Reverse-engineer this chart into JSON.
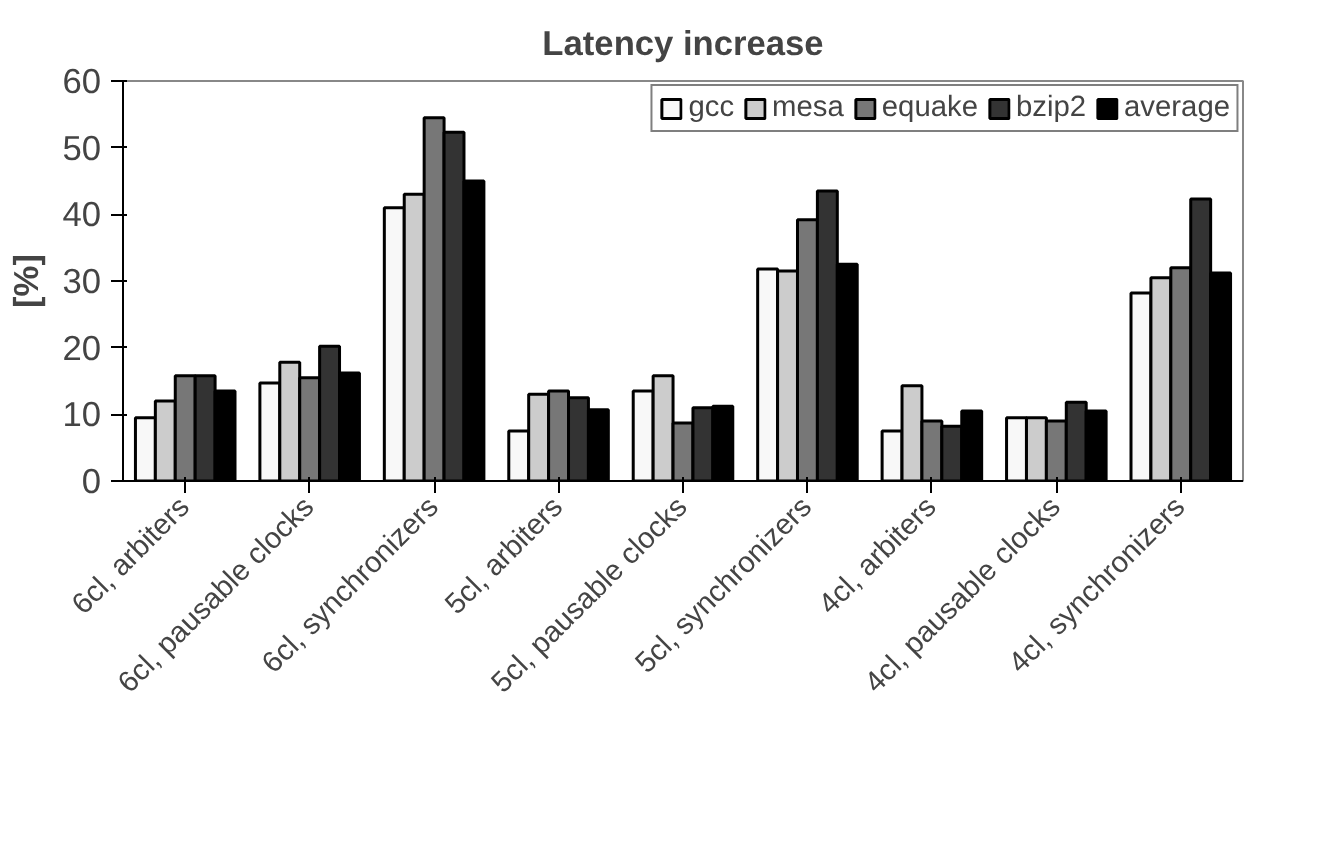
{
  "chart_data": {
    "type": "bar",
    "title": "Latency increase",
    "ylabel": "[%]",
    "categories": [
      "6cl, arbiters",
      "6cl, pausable clocks",
      "6cl, synchronizers",
      "5cl, arbiters",
      "5cl, pausable clocks",
      "5cl, synchronizers",
      "4cl, arbiters",
      "4cl, pausable clocks",
      "4cl, synchronizers"
    ],
    "series": [
      {
        "name": "gcc",
        "color": "#f8f8f8",
        "values": [
          9.5,
          14.7,
          41,
          7.5,
          13.5,
          31.8,
          7.5,
          9.5,
          28.2
        ]
      },
      {
        "name": "mesa",
        "color": "#cccccc",
        "values": [
          12,
          17.8,
          43,
          13,
          15.8,
          31.5,
          14.3,
          9.5,
          30.5
        ]
      },
      {
        "name": "equake",
        "color": "#777777",
        "values": [
          15.8,
          15.5,
          54.5,
          13.5,
          8.7,
          39.2,
          9,
          9,
          32
        ]
      },
      {
        "name": "bzip2",
        "color": "#333333",
        "values": [
          15.8,
          20.2,
          52.3,
          12.5,
          11,
          43.5,
          8.2,
          11.8,
          42.3
        ]
      },
      {
        "name": "average",
        "color": "#000000",
        "values": [
          13.5,
          16.2,
          45,
          10.7,
          11.2,
          32.5,
          10.5,
          10.5,
          31.2
        ]
      }
    ],
    "ylim": [
      0,
      60
    ],
    "yticks": [
      0,
      10,
      20,
      30,
      40,
      50,
      60
    ],
    "grid": false,
    "legend": "top right"
  }
}
